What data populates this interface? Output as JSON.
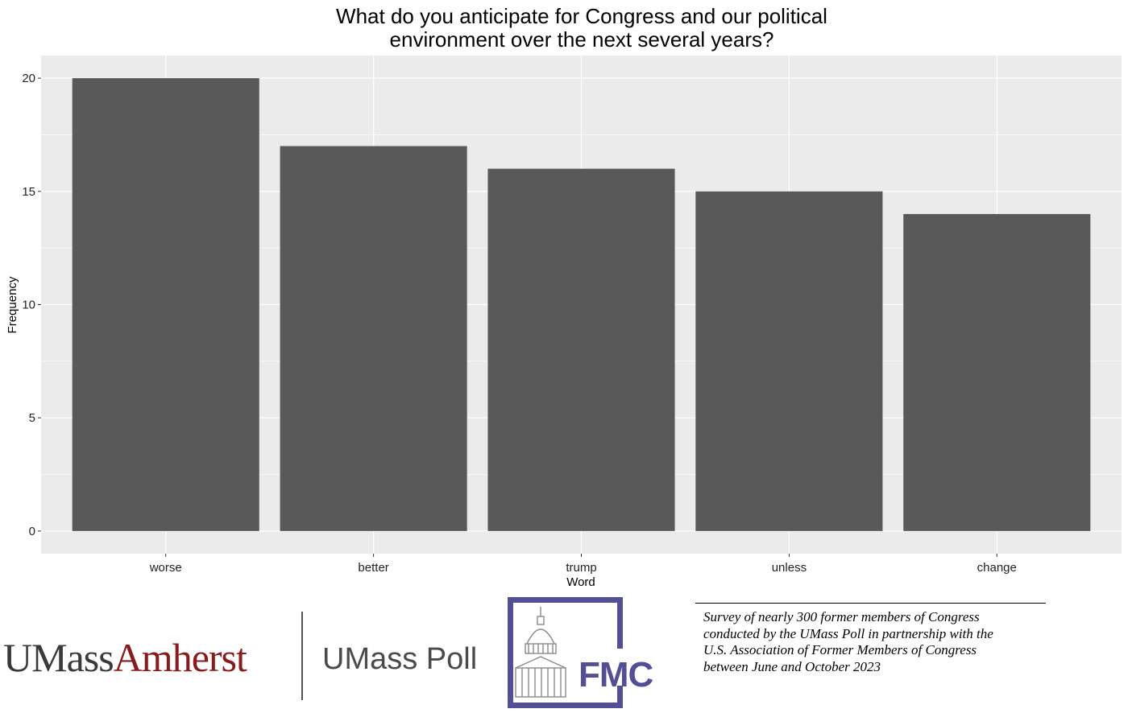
{
  "chart_data": {
    "type": "bar",
    "title_lines": [
      "What do you anticipate for Congress and our political",
      "environment over the next several years?"
    ],
    "categories": [
      "worse",
      "better",
      "trump",
      "unless",
      "change"
    ],
    "values": [
      20,
      17,
      16,
      15,
      14
    ],
    "xlabel": "Word",
    "ylabel": "Frequency",
    "ylim": [
      -1,
      21
    ],
    "yticks": [
      "0",
      "5",
      "10",
      "15",
      "20"
    ],
    "grid": true,
    "panel_color": "#ebebeb",
    "bar_color": "#595959"
  },
  "footer": {
    "umass_text": "UMass",
    "amherst_text": "Amherst",
    "poll_text": "UMass Poll",
    "fmc_text": "FMC",
    "note_lines": [
      "Survey of nearly 300 former members of Congress",
      "conducted by the UMass Poll in partnership with the",
      "U.S. Association of Former Members of Congress",
      "between June and October 2023"
    ]
  }
}
